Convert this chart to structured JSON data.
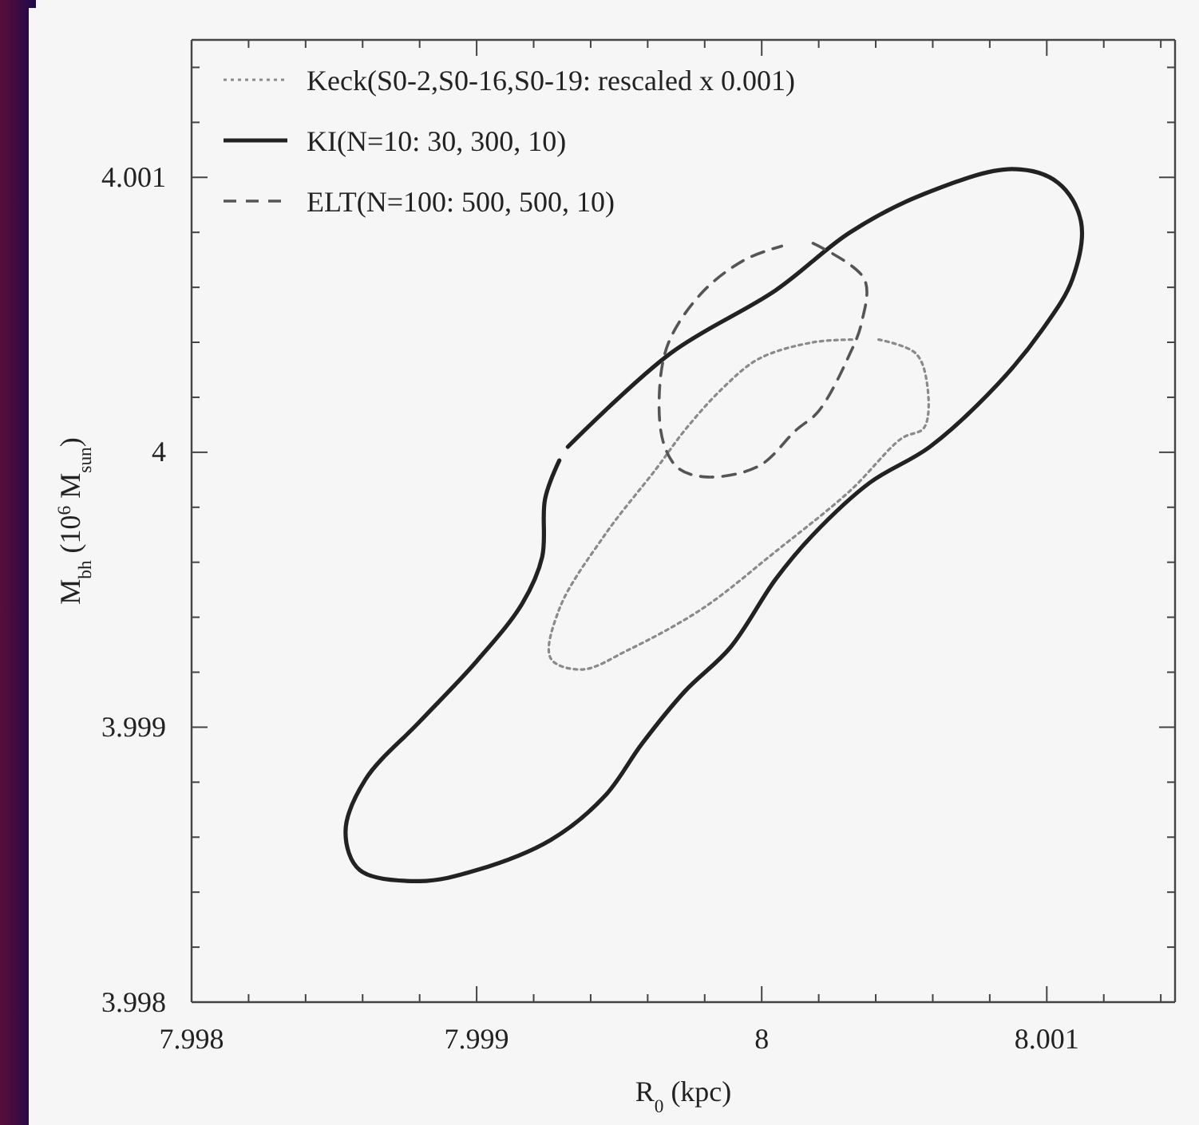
{
  "chart_data": {
    "type": "line",
    "xlabel": "R$_{0}$ (kpc)",
    "ylabel": "M$_{bh}$ (10$^{6}$ M$_{sun}$)",
    "xlim": [
      7.998,
      8.00145
    ],
    "ylim": [
      3.998,
      4.0015
    ],
    "xticks": [
      7.998,
      {
        "value": 7.9982,
        "label": null
      },
      {
        "value": 7.9984,
        "label": null
      },
      {
        "value": 7.9986,
        "label": null
      },
      {
        "value": 7.9988,
        "label": null
      },
      7.999,
      {
        "value": 7.9992,
        "label": null
      },
      {
        "value": 7.9994,
        "label": null
      },
      {
        "value": 7.9996,
        "label": null
      },
      {
        "value": 7.9998,
        "label": null
      },
      8,
      {
        "value": 8.0002,
        "label": null
      },
      {
        "value": 8.0004,
        "label": null
      },
      {
        "value": 8.0006,
        "label": null
      },
      {
        "value": 8.0008,
        "label": null
      },
      8.001,
      {
        "value": 8.0012,
        "label": null
      },
      {
        "value": 8.0014,
        "label": null
      }
    ],
    "yticks": [
      3.998,
      {
        "value": 3.9982,
        "label": null
      },
      {
        "value": 3.9984,
        "label": null
      },
      {
        "value": 3.9986,
        "label": null
      },
      {
        "value": 3.9988,
        "label": null
      },
      3.999,
      {
        "value": 3.9992,
        "label": null
      },
      {
        "value": 3.9994,
        "label": null
      },
      {
        "value": 3.9996,
        "label": null
      },
      {
        "value": 3.9998,
        "label": null
      },
      4,
      {
        "value": 4.0002,
        "label": null
      },
      {
        "value": 4.0004,
        "label": null
      },
      {
        "value": 4.0006,
        "label": null
      },
      {
        "value": 4.0008,
        "label": null
      },
      4.001,
      {
        "value": 4.0012,
        "label": null
      },
      {
        "value": 4.0014,
        "label": null
      }
    ],
    "grid": false,
    "legend": "top left",
    "marker": "none",
    "series": [
      {
        "name": "Keck(S0-2,S0-16,S0-19: rescaled x 0.001)",
        "color": "#8a8a8a",
        "line_style": "dotted",
        "x": [
          8.00041,
          8.00054,
          8.00058,
          8.00057,
          8.00049,
          8.00031,
          8.00005,
          7.99979,
          7.99953,
          7.99937,
          7.99926,
          7.99929,
          7.99945,
          7.99963,
          7.99973,
          7.99986,
          7.99999,
          8.00018,
          8.00033
        ],
        "values": [
          4.00041,
          4.00036,
          4.00025,
          4.00009,
          4.00005,
          3.99986,
          3.99964,
          3.99943,
          3.99928,
          3.99921,
          3.99925,
          3.99943,
          3.9997,
          3.99994,
          4.00008,
          4.00023,
          4.00034,
          4.0004,
          4.00041
        ]
      },
      {
        "name": "KI(N=10: 30, 300, 10)",
        "color": "#222222",
        "line_style": "solid",
        "x": [
          7.99932,
          7.99968,
          8.00005,
          8.00031,
          8.00057,
          8.00088,
          8.00104,
          8.00112,
          8.00109,
          8.00098,
          8.00083,
          8.00059,
          8.00038,
          8.00018,
          8.00005,
          7.99989,
          7.99973,
          7.99958,
          7.99945,
          7.99926,
          7.999,
          7.9988,
          7.99859,
          7.99854,
          7.99861,
          7.9988,
          7.999,
          7.99916,
          7.99923,
          7.99924,
          7.99929
        ],
        "values": [
          4.00002,
          4.00036,
          4.00059,
          4.0008,
          4.00094,
          4.00103,
          4.00098,
          4.00084,
          4.00063,
          4.00044,
          4.00025,
          4.00002,
          3.99989,
          3.9997,
          3.99954,
          3.99929,
          3.99913,
          3.99894,
          3.99875,
          3.99859,
          3.99848,
          3.99844,
          3.99848,
          3.99862,
          3.99881,
          3.99902,
          3.99924,
          3.99945,
          3.99962,
          3.99983,
          3.99997
        ]
      },
      {
        "name": "ELT(N=100: 500, 500, 10)",
        "color": "#555555",
        "line_style": "dashed",
        "x": [
          8.00018,
          8.00036,
          8.00035,
          8.00031,
          8.0002,
          8.00012,
          7.99999,
          7.99981,
          7.99971,
          7.99966,
          7.99964,
          7.99967,
          7.99979,
          7.99994,
          8.00007
        ],
        "values": [
          4.00076,
          4.00063,
          4.00047,
          4.00036,
          4.00015,
          4.00008,
          3.99995,
          3.99991,
          3.99994,
          4.00002,
          4.00017,
          4.00039,
          4.00058,
          4.0007,
          4.00075
        ]
      }
    ]
  }
}
